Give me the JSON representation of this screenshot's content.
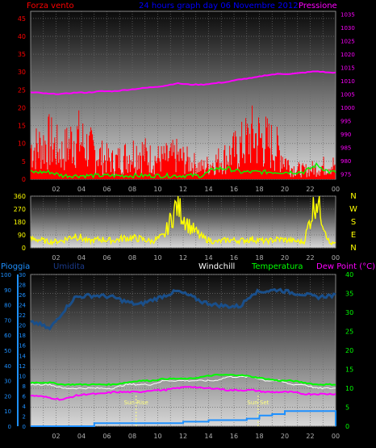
{
  "header": {
    "left_title": "Forza vento",
    "center_title": "24 hours graph day  06 Novembre 2012",
    "right_title": "Pressione"
  },
  "lower_header": {
    "pioggia": "Pioggia",
    "umidita": "Umidita",
    "windchill": "Windchill",
    "temperatura": "Temperatura",
    "dew_point": "Dew Point (°C)"
  },
  "colors": {
    "wind": "#ff0000",
    "gust": "#00ff00",
    "pressure": "#ff00ff",
    "direction": "#ffff00",
    "humidity": "#1a4f8a",
    "windchill": "#ffffff",
    "temperature": "#00ff00",
    "dewpoint": "#ff00ff",
    "rain": "#1e90ff",
    "title": "#0000ff"
  },
  "chart_data": [
    {
      "type": "line",
      "panel": "wind-pressure",
      "x_ticks": [
        "02",
        "04",
        "06",
        "08",
        "10",
        "12",
        "14",
        "16",
        "18",
        "20",
        "22",
        "00"
      ],
      "y_left_ticks": [
        "0",
        "5",
        "10",
        "15",
        "20",
        "25",
        "30",
        "35",
        "40",
        "45"
      ],
      "y_left_range": [
        0,
        47
      ],
      "y_right_ticks": [
        "975",
        "980",
        "985",
        "990",
        "995",
        "1000",
        "1005",
        "1010",
        "1015",
        "1020",
        "1025",
        "1030",
        "1035"
      ],
      "y_right_range": [
        973,
        1036
      ],
      "series": [
        {
          "name": "Forza vento",
          "key": "wind",
          "values": [
            11,
            13,
            9,
            15,
            11,
            8,
            6,
            8,
            10,
            7,
            7,
            8,
            6,
            4,
            6,
            8,
            11,
            15,
            13,
            10,
            4,
            3,
            4,
            5
          ]
        },
        {
          "name": "Gust",
          "key": "gust",
          "values": [
            2,
            2,
            1,
            1,
            1,
            1,
            1,
            1,
            1,
            1,
            1,
            1,
            1,
            1,
            3,
            3,
            2,
            2,
            2,
            2,
            2,
            2,
            4,
            2
          ]
        },
        {
          "name": "Pressione",
          "key": "pressure",
          "values": [
            1005.5,
            1005,
            1005,
            1005.5,
            1005.5,
            1006,
            1006,
            1006.5,
            1007,
            1007.5,
            1008,
            1009,
            1008.5,
            1008.5,
            1009,
            1009.5,
            1010.5,
            1011,
            1012,
            1012.5,
            1012.5,
            1013,
            1013.5,
            1013
          ]
        }
      ]
    },
    {
      "type": "line",
      "panel": "wind-direction",
      "x_ticks": [
        "02",
        "04",
        "06",
        "08",
        "10",
        "12",
        "14",
        "16",
        "18",
        "20",
        "22",
        "00"
      ],
      "y_left_ticks": [
        "0",
        "90",
        "180",
        "270",
        "360"
      ],
      "y_left_range": [
        0,
        360
      ],
      "y_right_ticks": [
        "N",
        "W",
        "S",
        "E",
        "N"
      ],
      "series": [
        {
          "name": "Direzione",
          "key": "direction",
          "values": [
            60,
            40,
            50,
            90,
            45,
            60,
            50,
            70,
            65,
            45,
            80,
            300,
            150,
            70,
            40,
            55,
            50,
            60,
            45,
            60,
            50,
            40,
            360,
            30
          ]
        }
      ]
    },
    {
      "type": "line",
      "panel": "temperature",
      "x_ticks": [
        "02",
        "04",
        "06",
        "08",
        "10",
        "12",
        "14",
        "16",
        "18",
        "20",
        "22",
        "00"
      ],
      "y_left_ticks": [
        "0",
        "10",
        "20",
        "30",
        "40",
        "50",
        "60",
        "70",
        "80",
        "90",
        "100"
      ],
      "y_left_range": [
        0,
        100
      ],
      "y_mid_ticks": [
        "0",
        "2",
        "4",
        "6",
        "8",
        "10",
        "12",
        "14",
        "16",
        "18",
        "20",
        "22",
        "24",
        "26",
        "28",
        "30"
      ],
      "y_right_ticks": [
        "0",
        "5",
        "10",
        "15",
        "20",
        "25",
        "30",
        "35",
        "40"
      ],
      "y_right_range": [
        0,
        40
      ],
      "annotations": [
        {
          "label": "Sun Rise",
          "x": 8.3
        },
        {
          "label": "Sun Set",
          "x": 17.9
        }
      ],
      "series": [
        {
          "name": "Umidita",
          "key": "humidity",
          "values": [
            68,
            64,
            75,
            85,
            86,
            86,
            85,
            82,
            80,
            83,
            86,
            89,
            86,
            82,
            80,
            79,
            79,
            88,
            89,
            90,
            88,
            87,
            85,
            86
          ]
        },
        {
          "name": "Windchill",
          "key": "windchill",
          "values": [
            11,
            11,
            10,
            10,
            10,
            10,
            10,
            11,
            11,
            11,
            12,
            12,
            12,
            12,
            12,
            13,
            13,
            13,
            12,
            12,
            11,
            11,
            10,
            10
          ]
        },
        {
          "name": "Temperatura",
          "key": "temperature",
          "values": [
            11.5,
            11.5,
            11,
            11,
            11,
            11,
            11,
            11.5,
            12,
            12,
            12.5,
            12.5,
            12.5,
            13,
            13.5,
            13.5,
            13.5,
            13,
            12.5,
            12,
            12,
            11.5,
            11,
            11
          ]
        },
        {
          "name": "Dew Point",
          "key": "dewpoint",
          "values": [
            8,
            7.5,
            7,
            8,
            8.5,
            8.5,
            9,
            9,
            9,
            9.5,
            9.5,
            10,
            10.5,
            10,
            10,
            9.5,
            9.5,
            9.5,
            9,
            9,
            9,
            8.5,
            8.5,
            8.5
          ]
        },
        {
          "name": "Pioggia",
          "key": "rain",
          "values": [
            0,
            0,
            0,
            0,
            0,
            1,
            1,
            1,
            1,
            1,
            1,
            1,
            1.5,
            1.5,
            2,
            2,
            2,
            2.5,
            3.5,
            4,
            5,
            5,
            5,
            5
          ]
        }
      ]
    }
  ]
}
